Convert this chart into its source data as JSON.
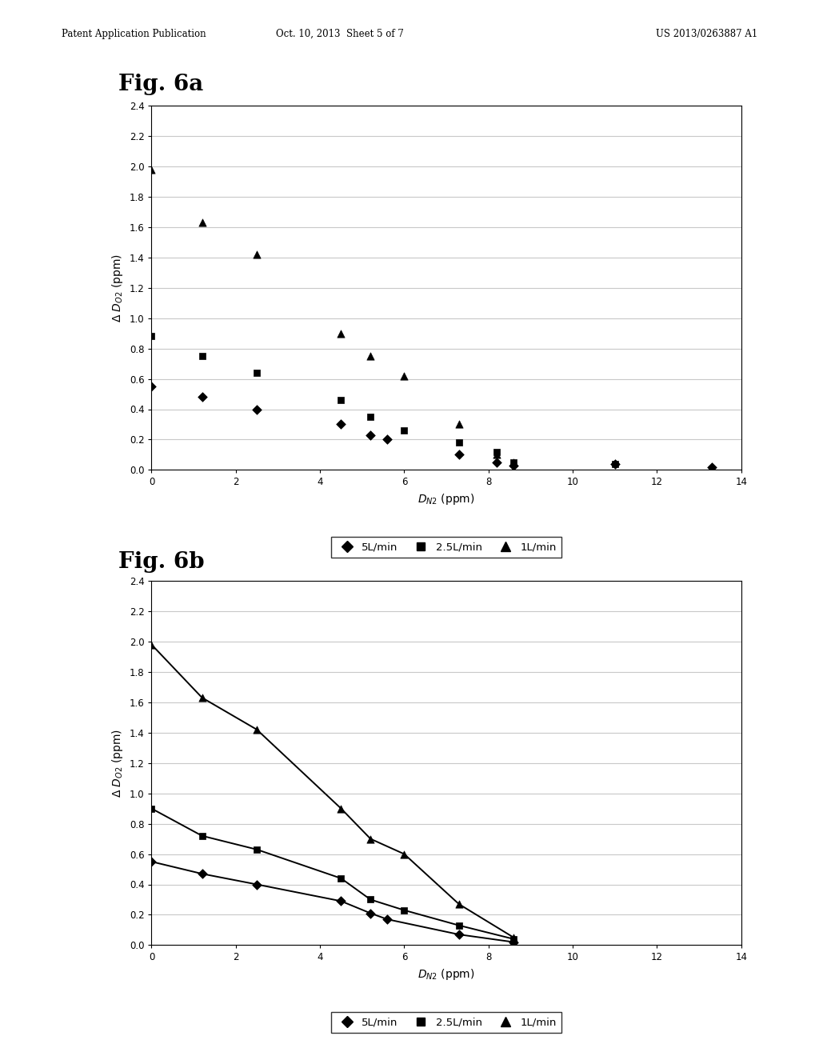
{
  "fig6a_title": "Fig. 6a",
  "fig6b_title": "Fig. 6b",
  "header_left": "Patent Application Publication",
  "header_center": "Oct. 10, 2013  Sheet 5 of 7",
  "header_right": "US 2013/0263887 A1",
  "xlim": [
    0,
    14
  ],
  "ylim": [
    0,
    2.4
  ],
  "yticks": [
    0.0,
    0.2,
    0.4,
    0.6,
    0.8,
    1.0,
    1.2,
    1.4,
    1.6,
    1.8,
    2.0,
    2.2,
    2.4
  ],
  "xticks": [
    0,
    2,
    4,
    6,
    8,
    10,
    12,
    14
  ],
  "fig6a_5lmin_x": [
    0,
    1.2,
    2.5,
    4.5,
    5.2,
    5.6,
    7.3,
    8.2,
    8.6,
    11.0,
    13.3
  ],
  "fig6a_5lmin_y": [
    0.55,
    0.48,
    0.4,
    0.3,
    0.23,
    0.2,
    0.1,
    0.05,
    0.03,
    0.04,
    0.02
  ],
  "fig6a_25lmin_x": [
    0,
    1.2,
    2.5,
    4.5,
    5.2,
    6.0,
    7.3,
    8.2,
    8.6,
    11.0
  ],
  "fig6a_25lmin_y": [
    0.88,
    0.75,
    0.64,
    0.46,
    0.35,
    0.26,
    0.18,
    0.12,
    0.05,
    0.04
  ],
  "fig6a_1lmin_x": [
    0,
    1.2,
    2.5,
    4.5,
    5.2,
    6.0,
    7.3,
    8.2,
    8.6
  ],
  "fig6a_1lmin_y": [
    1.98,
    1.63,
    1.42,
    0.9,
    0.75,
    0.62,
    0.3,
    0.1,
    0.05
  ],
  "fig6b_5lmin_x": [
    0,
    1.2,
    2.5,
    4.5,
    5.2,
    5.6,
    7.3,
    8.6
  ],
  "fig6b_5lmin_y": [
    0.55,
    0.47,
    0.4,
    0.29,
    0.21,
    0.17,
    0.07,
    0.02
  ],
  "fig6b_25lmin_x": [
    0,
    1.2,
    2.5,
    4.5,
    5.2,
    6.0,
    7.3,
    8.6
  ],
  "fig6b_25lmin_y": [
    0.9,
    0.72,
    0.63,
    0.44,
    0.3,
    0.23,
    0.13,
    0.04
  ],
  "fig6b_1lmin_x": [
    0,
    1.2,
    2.5,
    4.5,
    5.2,
    6.0,
    7.3,
    8.6
  ],
  "fig6b_1lmin_y": [
    1.98,
    1.63,
    1.42,
    0.9,
    0.7,
    0.6,
    0.27,
    0.05
  ],
  "legend_labels": [
    "5L/min",
    "2.5L/min",
    "1L/min"
  ],
  "marker_color": "black",
  "line_color": "black",
  "grid_color": "#c8c8c8"
}
